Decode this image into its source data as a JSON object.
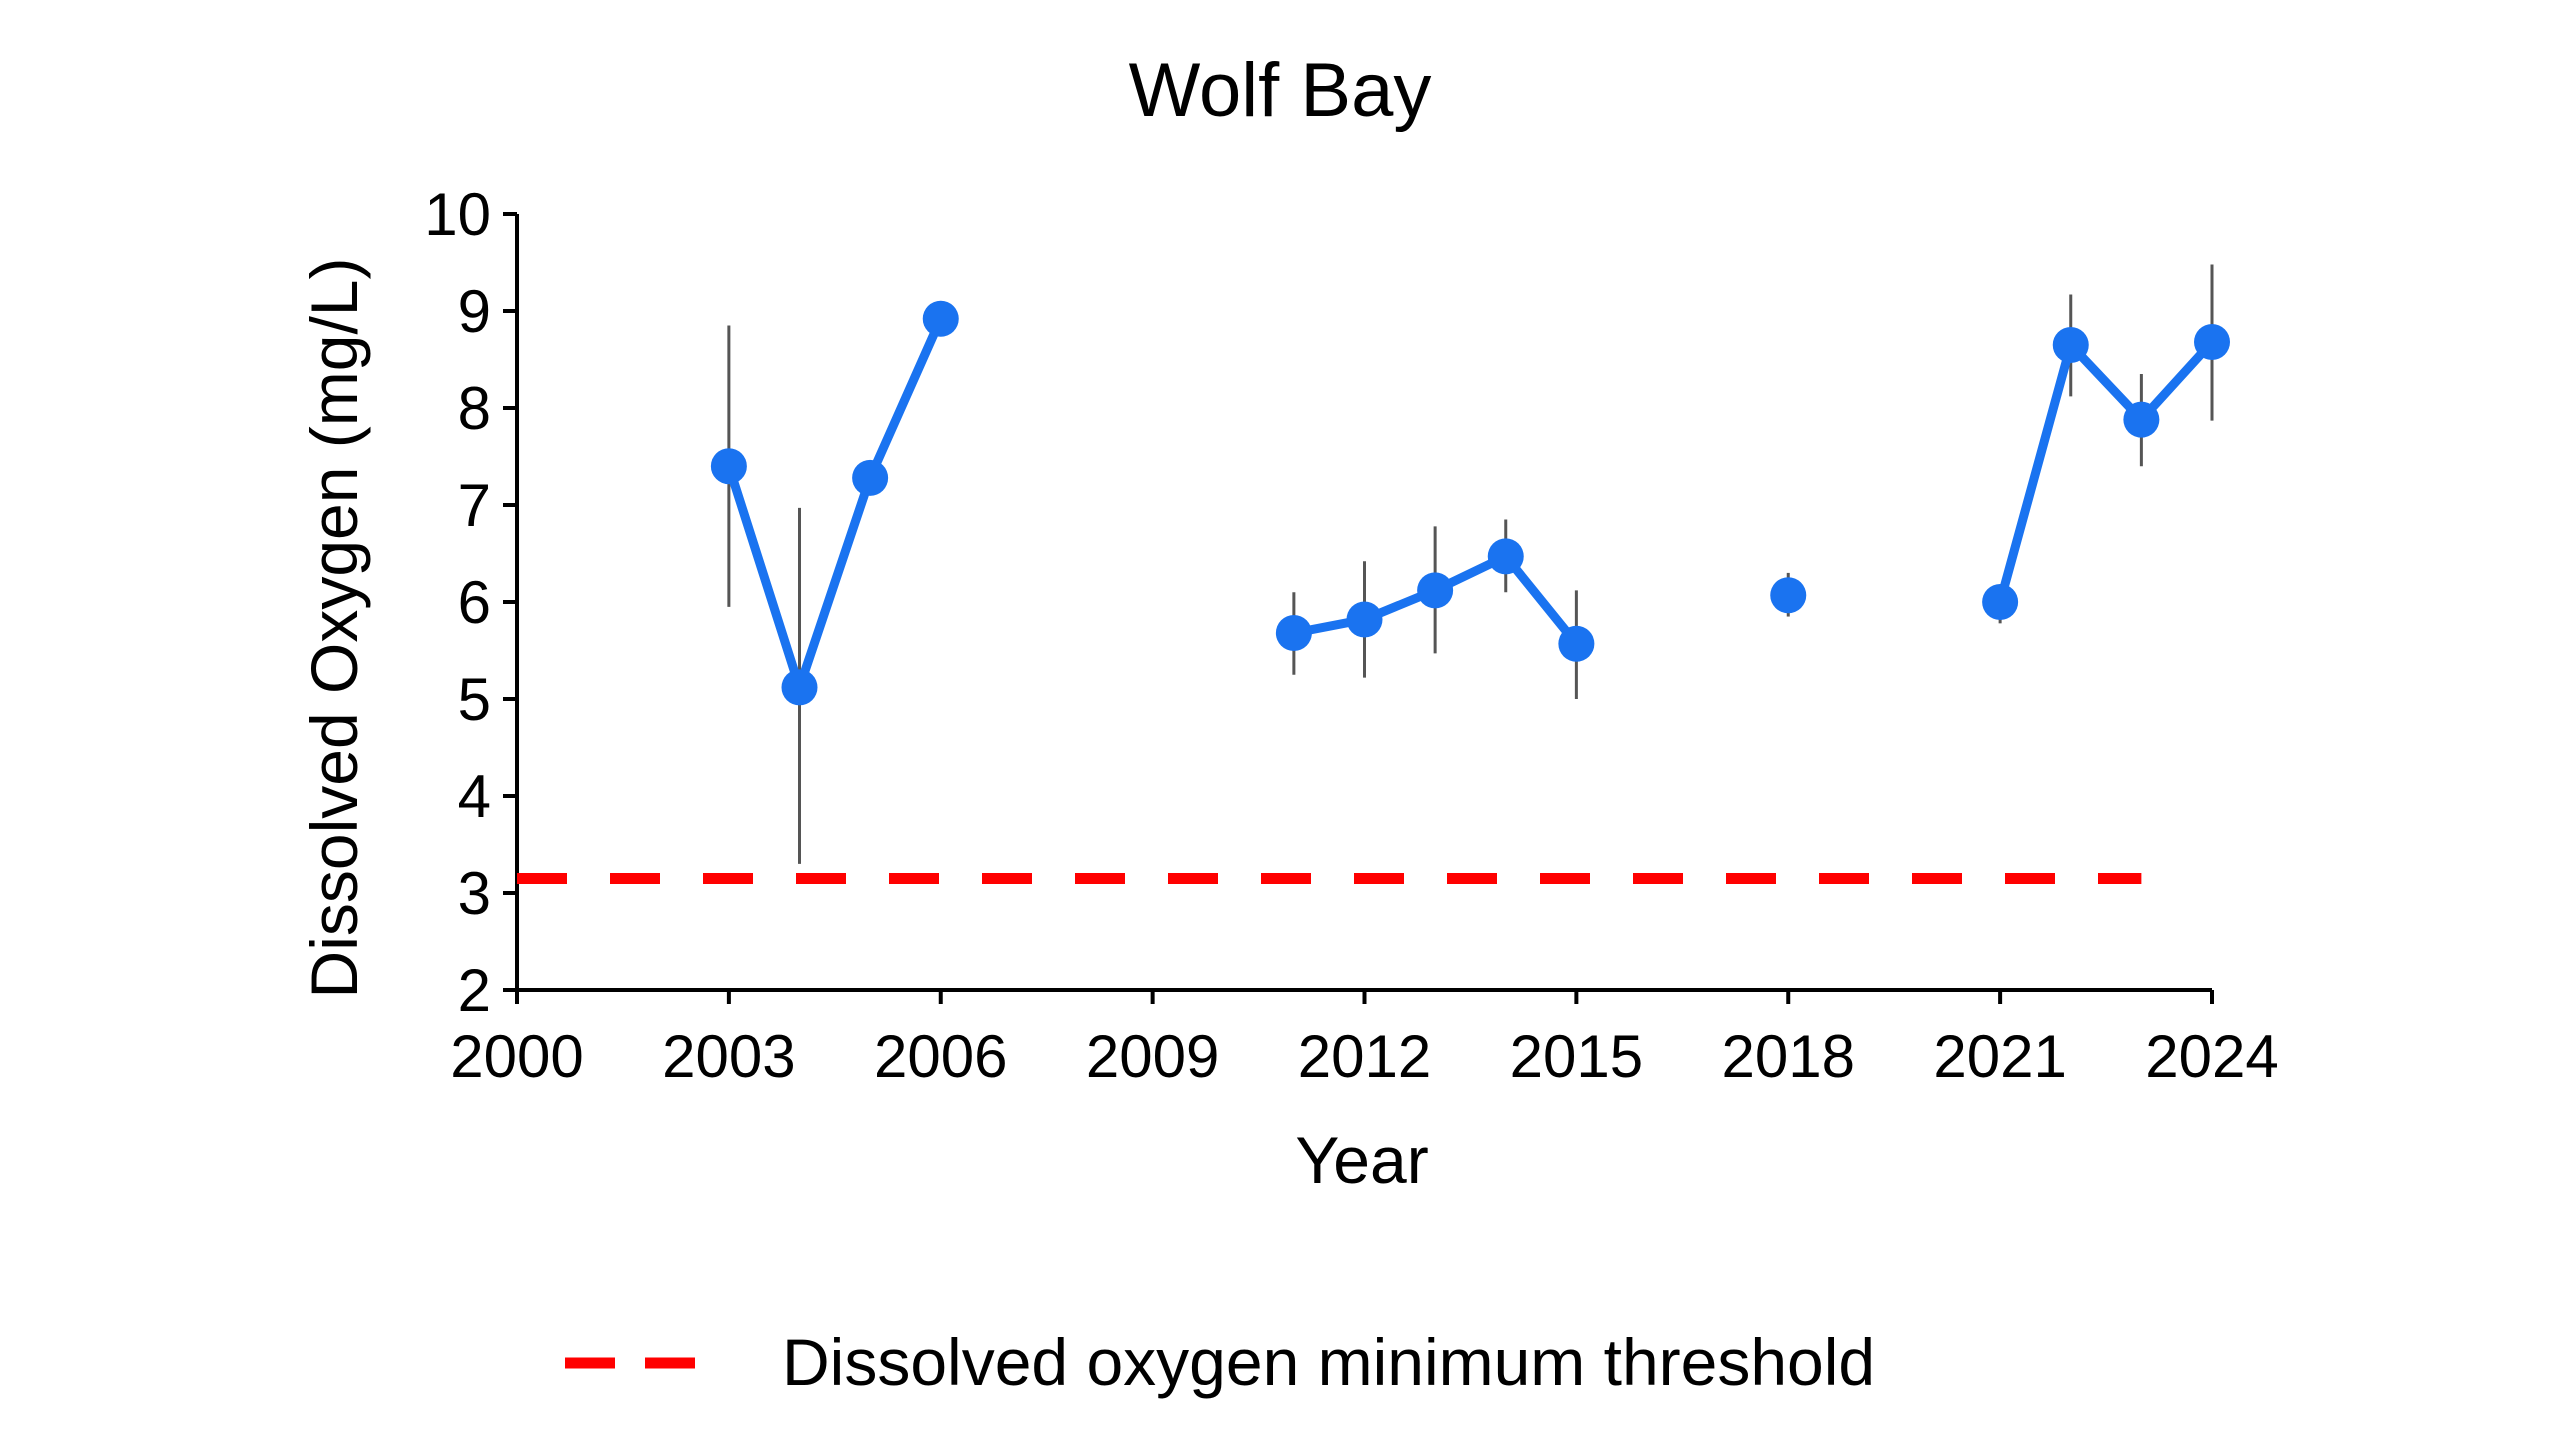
{
  "chart_data": {
    "type": "line",
    "title": "Wolf Bay",
    "xlabel": "Year",
    "ylabel": "Dissolved Oxygen (mg/L)",
    "xlim": [
      2000,
      2024
    ],
    "ylim": [
      2,
      10
    ],
    "xticks": [
      2000,
      2003,
      2006,
      2009,
      2012,
      2015,
      2018,
      2021,
      2024
    ],
    "yticks": [
      2,
      3,
      4,
      5,
      6,
      7,
      8,
      9,
      10
    ],
    "grid": false,
    "legend_position": "bottom",
    "series": [
      {
        "color": "#1a73f0",
        "points": [
          {
            "x": 2003,
            "y": 7.4,
            "err_low": 5.95,
            "err_high": 8.85
          },
          {
            "x": 2004,
            "y": 5.12,
            "err_low": 3.3,
            "err_high": 6.97
          },
          {
            "x": 2005,
            "y": 7.28,
            "err_low": null,
            "err_high": null
          },
          {
            "x": 2006,
            "y": 8.92,
            "err_low": null,
            "err_high": null
          },
          {
            "x": 2011,
            "y": 5.68,
            "err_low": 5.25,
            "err_high": 6.1
          },
          {
            "x": 2012,
            "y": 5.82,
            "err_low": 5.22,
            "err_high": 6.42
          },
          {
            "x": 2013,
            "y": 6.12,
            "err_low": 5.47,
            "err_high": 6.78
          },
          {
            "x": 2014,
            "y": 6.47,
            "err_low": 6.1,
            "err_high": 6.85
          },
          {
            "x": 2015,
            "y": 5.57,
            "err_low": 5.0,
            "err_high": 6.12
          },
          {
            "x": 2018,
            "y": 6.07,
            "err_low": 5.85,
            "err_high": 6.3
          },
          {
            "x": 2021,
            "y": 6.0,
            "err_low": 5.78,
            "err_high": 6.1
          },
          {
            "x": 2022,
            "y": 8.65,
            "err_low": 8.12,
            "err_high": 9.17
          },
          {
            "x": 2023,
            "y": 7.88,
            "err_low": 7.4,
            "err_high": 8.35
          },
          {
            "x": 2024,
            "y": 8.68,
            "err_low": 7.87,
            "err_high": 9.48
          }
        ],
        "segments": [
          [
            2003,
            2004,
            2005,
            2006
          ],
          [
            2011,
            2012,
            2013,
            2014,
            2015
          ],
          [
            2018
          ],
          [
            2021,
            2022,
            2023,
            2024
          ]
        ]
      }
    ],
    "threshold": {
      "name": "Dissolved oxygen minimum threshold",
      "y": 3.15,
      "x_start": 2000,
      "x_end": 2023,
      "color": "#ff0000",
      "style": "dashed"
    },
    "error_bar_color": "#555555"
  }
}
